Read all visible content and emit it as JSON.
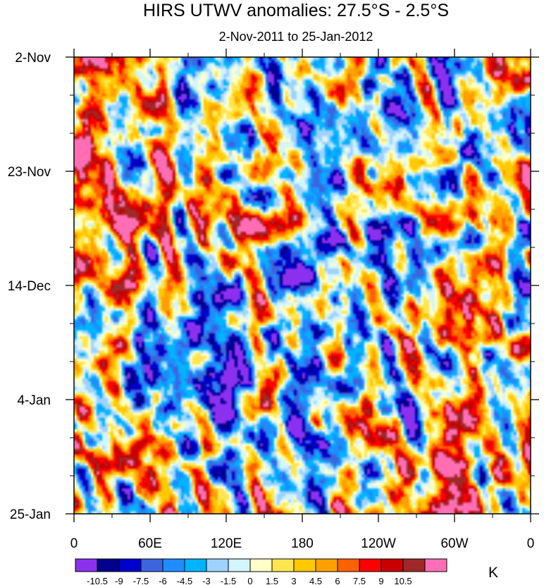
{
  "chart_data": {
    "type": "heatmap",
    "title": "HIRS UTWV anomalies: 27.5°S - 2.5°S",
    "subtitle": "2-Nov-2011 to 25-Jan-2012",
    "x_axis": {
      "labels": [
        "0",
        "60E",
        "120E",
        "180",
        "120W",
        "60W",
        "0"
      ],
      "range": [
        0,
        360
      ],
      "description": "longitude"
    },
    "y_axis": {
      "labels": [
        "2-Nov",
        "23-Nov",
        "14-Dec",
        "4-Jan",
        "25-Jan"
      ],
      "description": "time (days), increasing downward"
    },
    "colorbar": {
      "unit": "K",
      "levels": [
        "-10.5",
        "-9",
        "-7.5",
        "-6",
        "-4.5",
        "-3",
        "-1.5",
        "0",
        "1.5",
        "3",
        "4.5",
        "6",
        "7.5",
        "9",
        "10.5"
      ],
      "colors": [
        "#8c30f0",
        "#00008c",
        "#0000cd",
        "#3c64dc",
        "#1e8cff",
        "#00b4ff",
        "#a0d2ff",
        "#d2f5ff",
        "#ffffc8",
        "#ffe650",
        "#ffc800",
        "#ffa000",
        "#ff6000",
        "#ff0000",
        "#c80000",
        "#a02828",
        "#ff6eb4"
      ]
    },
    "value_range": [
      -12,
      12
    ]
  }
}
